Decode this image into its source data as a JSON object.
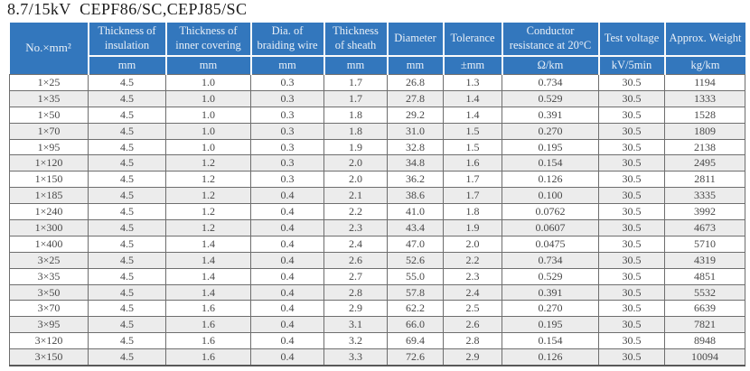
{
  "title": "8.7/15kV  CEPF86/SC,CEPJ85/SC",
  "colors": {
    "header_bg": "#3377bd",
    "header_text": "#eaf0f7",
    "row_alt_bg": "#ececec",
    "grid_line": "#6e6e6e",
    "data_text": "#474747"
  },
  "table": {
    "columns": [
      {
        "label": "No.×mm²",
        "unit": ""
      },
      {
        "label": "Thickness of insulation",
        "unit": "mm"
      },
      {
        "label": "Thickness of inner covering",
        "unit": "mm"
      },
      {
        "label": "Dia. of braiding wire",
        "unit": "mm"
      },
      {
        "label": "Thickness of sheath",
        "unit": "mm"
      },
      {
        "label": "Diameter",
        "unit": "mm"
      },
      {
        "label": "Tolerance",
        "unit": "±mm"
      },
      {
        "label": "Conductor resistance at 20°C",
        "unit": "Ω/km"
      },
      {
        "label": "Test voltage",
        "unit": "kV/5min"
      },
      {
        "label": "Approx. Weight",
        "unit": "kg/km"
      }
    ],
    "rows": [
      [
        "1×25",
        "4.5",
        "1.0",
        "0.3",
        "1.7",
        "26.8",
        "1.3",
        "0.734",
        "30.5",
        "1194"
      ],
      [
        "1×35",
        "4.5",
        "1.0",
        "0.3",
        "1.7",
        "27.8",
        "1.4",
        "0.529",
        "30.5",
        "1333"
      ],
      [
        "1×50",
        "4.5",
        "1.0",
        "0.3",
        "1.8",
        "29.2",
        "1.4",
        "0.391",
        "30.5",
        "1528"
      ],
      [
        "1×70",
        "4.5",
        "1.0",
        "0.3",
        "1.8",
        "31.0",
        "1.5",
        "0.270",
        "30.5",
        "1809"
      ],
      [
        "1×95",
        "4.5",
        "1.0",
        "0.3",
        "1.9",
        "32.8",
        "1.5",
        "0.195",
        "30.5",
        "2138"
      ],
      [
        "1×120",
        "4.5",
        "1.2",
        "0.3",
        "2.0",
        "34.8",
        "1.6",
        "0.154",
        "30.5",
        "2495"
      ],
      [
        "1×150",
        "4.5",
        "1.2",
        "0.3",
        "2.0",
        "36.2",
        "1.7",
        "0.126",
        "30.5",
        "2811"
      ],
      [
        "1×185",
        "4.5",
        "1.2",
        "0.4",
        "2.1",
        "38.6",
        "1.7",
        "0.100",
        "30.5",
        "3335"
      ],
      [
        "1×240",
        "4.5",
        "1.2",
        "0.4",
        "2.2",
        "41.0",
        "1.8",
        "0.0762",
        "30.5",
        "3992"
      ],
      [
        "1×300",
        "4.5",
        "1.2",
        "0.4",
        "2.3",
        "43.4",
        "1.9",
        "0.0607",
        "30.5",
        "4673"
      ],
      [
        "1×400",
        "4.5",
        "1.4",
        "0.4",
        "2.4",
        "47.0",
        "2.0",
        "0.0475",
        "30.5",
        "5710"
      ],
      [
        "3×25",
        "4.5",
        "1.4",
        "0.4",
        "2.6",
        "52.6",
        "2.2",
        "0.734",
        "30.5",
        "4319"
      ],
      [
        "3×35",
        "4.5",
        "1.4",
        "0.4",
        "2.7",
        "55.0",
        "2.3",
        "0.529",
        "30.5",
        "4851"
      ],
      [
        "3×50",
        "4.5",
        "1.4",
        "0.4",
        "2.8",
        "57.8",
        "2.4",
        "0.391",
        "30.5",
        "5532"
      ],
      [
        "3×70",
        "4.5",
        "1.6",
        "0.4",
        "2.9",
        "62.2",
        "2.5",
        "0.270",
        "30.5",
        "6639"
      ],
      [
        "3×95",
        "4.5",
        "1.6",
        "0.4",
        "3.1",
        "66.0",
        "2.6",
        "0.195",
        "30.5",
        "7821"
      ],
      [
        "3×120",
        "4.5",
        "1.6",
        "0.4",
        "3.2",
        "69.4",
        "2.8",
        "0.154",
        "30.5",
        "8948"
      ],
      [
        "3×150",
        "4.5",
        "1.6",
        "0.4",
        "3.3",
        "72.6",
        "2.9",
        "0.126",
        "30.5",
        "10094"
      ]
    ]
  }
}
